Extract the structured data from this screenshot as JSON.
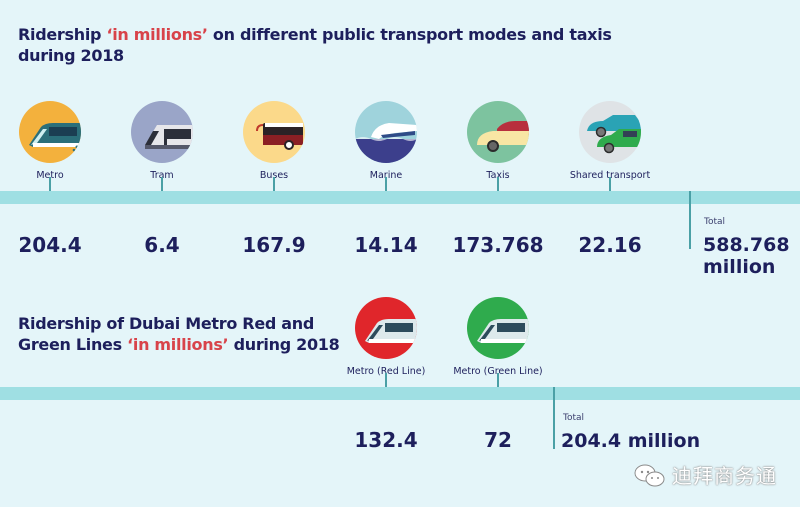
{
  "chart_data": [
    {
      "type": "table",
      "title": "Ridership ‘in millions’ on different public transport modes and taxis during 2018",
      "title_parts": {
        "before": "Ridership ",
        "highlight": "‘in millions’",
        "after": " on different public transport modes and taxis during 2018"
      },
      "unit": "millions",
      "categories": [
        "Metro",
        "Tram",
        "Buses",
        "Marine",
        "Taxis",
        "Shared transport"
      ],
      "values": [
        204.4,
        6.4,
        167.9,
        14.14,
        173.768,
        22.16
      ],
      "value_labels": [
        "204.4",
        "6.4",
        "167.9",
        "14.14",
        "173.768",
        "22.16"
      ],
      "total": {
        "label": "Total",
        "value": 588.768,
        "text": "588.768 million"
      }
    },
    {
      "type": "table",
      "title": "Ridership of Dubai Metro Red and Green Lines ‘in millions’ during 2018",
      "title_parts": {
        "before": "Ridership of Dubai Metro Red and Green Lines ",
        "highlight": "‘in millions’",
        "after": " during 2018"
      },
      "unit": "millions",
      "categories": [
        "Metro (Red Line)",
        "Metro (Green Line)"
      ],
      "values": [
        132.4,
        72
      ],
      "value_labels": [
        "132.4",
        "72"
      ],
      "total": {
        "label": "Total",
        "value": 204.4,
        "text": "204.4 million"
      }
    }
  ],
  "section1": {
    "title_before": "Ridership ",
    "title_highlight": "‘in millions’",
    "title_after": " on different public transport modes and taxis during 2018",
    "modes": [
      {
        "label": "Metro",
        "value": "204.4",
        "icon": "metro-train-icon",
        "circle_color": "#f3b13d"
      },
      {
        "label": "Tram",
        "value": "6.4",
        "icon": "tram-icon",
        "circle_color": "#9aa5c8"
      },
      {
        "label": "Buses",
        "value": "167.9",
        "icon": "bus-icon",
        "circle_color": "#fbd98a"
      },
      {
        "label": "Marine",
        "value": "14.14",
        "icon": "boat-icon",
        "circle_color": "#9fd3dc"
      },
      {
        "label": "Taxis",
        "value": "173.768",
        "icon": "taxi-car-icon",
        "circle_color": "#7dc39f"
      },
      {
        "label": "Shared transport",
        "value": "22.16",
        "icon": "shared-cars-icon",
        "circle_color": "#dfe3e6"
      }
    ],
    "total_label": "Total",
    "total_value_line1": "588.768",
    "total_value_line2": "million"
  },
  "section2": {
    "title_before": "Ridership of Dubai Metro Red and Green Lines ",
    "title_highlight": "‘in millions’",
    "title_after": " during 2018",
    "lines": [
      {
        "label": "Metro (Red Line)",
        "value": "132.4",
        "icon": "metro-red-line-icon",
        "circle_color": "#e0262b"
      },
      {
        "label": "Metro (Green Line)",
        "value": "72",
        "icon": "metro-green-line-icon",
        "circle_color": "#2fab4d"
      }
    ],
    "total_label": "Total",
    "total_value": "204.4 million"
  },
  "colors": {
    "background": "#e4f5f9",
    "band": "#9fdfe3",
    "text": "#1d1f5c",
    "highlight": "#d8434a"
  },
  "watermark": "迪拜商务通"
}
